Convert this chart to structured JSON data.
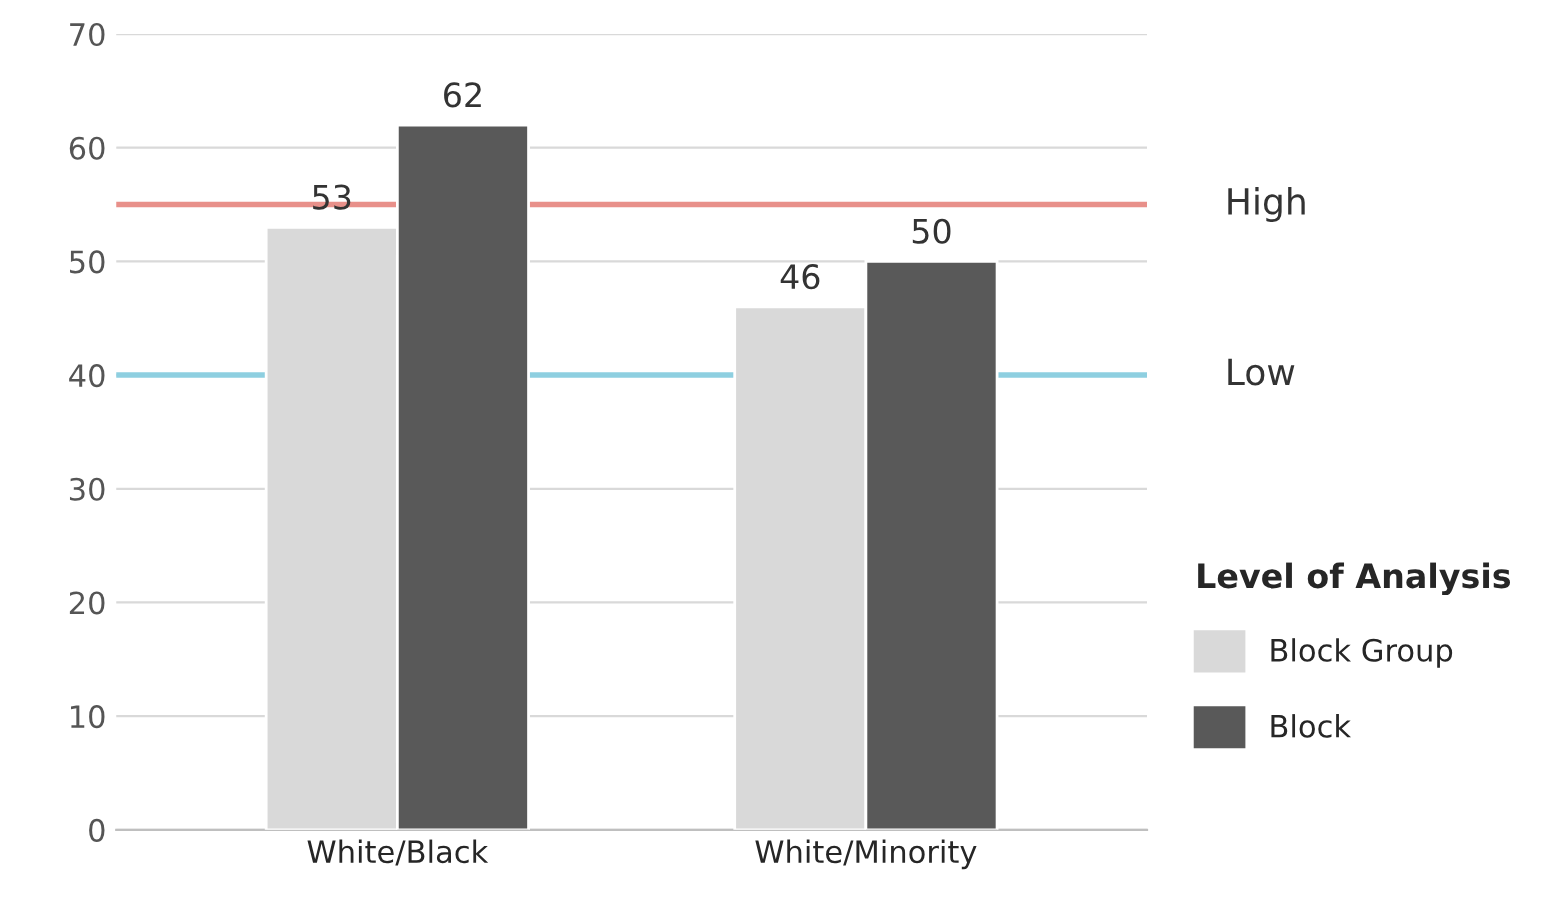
{
  "chart_data": {
    "type": "bar",
    "categories": [
      "White/Black",
      "White/Minority"
    ],
    "series": [
      {
        "name": "Block Group",
        "color": "#d9d9d9",
        "values": [
          53,
          46
        ]
      },
      {
        "name": "Block",
        "color": "#595959",
        "values": [
          62,
          50
        ]
      }
    ],
    "ylim": [
      0,
      70
    ],
    "yticks": [
      0,
      10,
      20,
      30,
      40,
      50,
      60,
      70
    ],
    "grid": "y",
    "legend": "right",
    "legend_title": "Level of Analysis",
    "data_labels": true,
    "ref_lines": [
      {
        "axis": "y",
        "value": 55,
        "label": "High",
        "color": "#e8908a"
      },
      {
        "axis": "y",
        "value": 40,
        "label": "Low",
        "color": "#8ecfe0"
      }
    ]
  }
}
